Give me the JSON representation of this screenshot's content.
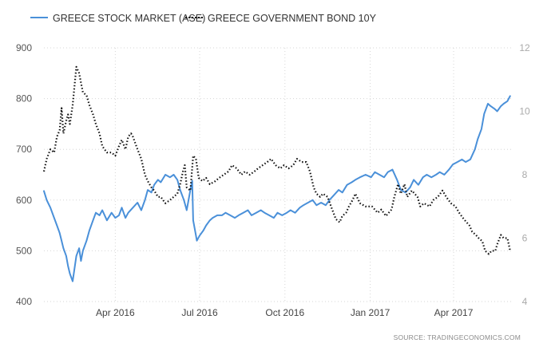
{
  "chart_data": {
    "type": "line",
    "title": "",
    "xlabel": "",
    "ylabel": "",
    "legend_position": "top-left",
    "grid": true,
    "x_axis": {
      "range": [
        "2016-01-15",
        "2017-06-02"
      ],
      "ticks": [
        {
          "date": "2016-04-01",
          "label": "Apr 2016"
        },
        {
          "date": "2016-07-01",
          "label": "Jul 2016"
        },
        {
          "date": "2016-10-01",
          "label": "Oct 2016"
        },
        {
          "date": "2017-01-01",
          "label": "Jan 2017"
        },
        {
          "date": "2017-04-01",
          "label": "Apr 2017"
        }
      ]
    },
    "y_left": {
      "range": [
        400,
        900
      ],
      "ticks": [
        {
          "v": 400,
          "label": "400"
        },
        {
          "v": 500,
          "label": "500"
        },
        {
          "v": 600,
          "label": "600"
        },
        {
          "v": 700,
          "label": "700"
        },
        {
          "v": 800,
          "label": "800"
        },
        {
          "v": 900,
          "label": "900"
        }
      ]
    },
    "y_right": {
      "range": [
        4,
        12
      ],
      "ticks": [
        {
          "v": 4,
          "label": "4"
        },
        {
          "v": 6,
          "label": "6"
        },
        {
          "v": 8,
          "label": "8"
        },
        {
          "v": 10,
          "label": "10"
        },
        {
          "v": 12,
          "label": "12"
        }
      ]
    },
    "series": [
      {
        "name": "GREECE STOCK MARKET (ASE)",
        "axis": "left",
        "color": "#4a90d9",
        "dash": "solid",
        "points": [
          [
            "2016-01-15",
            618
          ],
          [
            "2016-01-18",
            600
          ],
          [
            "2016-01-22",
            585
          ],
          [
            "2016-01-26",
            565
          ],
          [
            "2016-01-29",
            550
          ],
          [
            "2016-02-01",
            535
          ],
          [
            "2016-02-03",
            520
          ],
          [
            "2016-02-05",
            505
          ],
          [
            "2016-02-08",
            490
          ],
          [
            "2016-02-10",
            470
          ],
          [
            "2016-02-12",
            455
          ],
          [
            "2016-02-15",
            440
          ],
          [
            "2016-02-17",
            465
          ],
          [
            "2016-02-19",
            490
          ],
          [
            "2016-02-22",
            505
          ],
          [
            "2016-02-24",
            480
          ],
          [
            "2016-02-26",
            500
          ],
          [
            "2016-03-01",
            520
          ],
          [
            "2016-03-04",
            540
          ],
          [
            "2016-03-08",
            560
          ],
          [
            "2016-03-11",
            575
          ],
          [
            "2016-03-15",
            570
          ],
          [
            "2016-03-18",
            580
          ],
          [
            "2016-03-23",
            560
          ],
          [
            "2016-03-28",
            575
          ],
          [
            "2016-04-01",
            565
          ],
          [
            "2016-04-05",
            570
          ],
          [
            "2016-04-08",
            585
          ],
          [
            "2016-04-12",
            565
          ],
          [
            "2016-04-15",
            575
          ],
          [
            "2016-04-20",
            585
          ],
          [
            "2016-04-25",
            595
          ],
          [
            "2016-04-29",
            580
          ],
          [
            "2016-05-03",
            600
          ],
          [
            "2016-05-06",
            620
          ],
          [
            "2016-05-10",
            615
          ],
          [
            "2016-05-13",
            630
          ],
          [
            "2016-05-17",
            640
          ],
          [
            "2016-05-20",
            635
          ],
          [
            "2016-05-25",
            650
          ],
          [
            "2016-05-30",
            645
          ],
          [
            "2016-06-03",
            650
          ],
          [
            "2016-06-07",
            640
          ],
          [
            "2016-06-10",
            620
          ],
          [
            "2016-06-14",
            600
          ],
          [
            "2016-06-17",
            580
          ],
          [
            "2016-06-21",
            620
          ],
          [
            "2016-06-23",
            638
          ],
          [
            "2016-06-24",
            560
          ],
          [
            "2016-06-27",
            530
          ],
          [
            "2016-06-28",
            520
          ],
          [
            "2016-07-01",
            530
          ],
          [
            "2016-07-05",
            540
          ],
          [
            "2016-07-08",
            550
          ],
          [
            "2016-07-12",
            560
          ],
          [
            "2016-07-15",
            565
          ],
          [
            "2016-07-20",
            570
          ],
          [
            "2016-07-25",
            570
          ],
          [
            "2016-07-29",
            575
          ],
          [
            "2016-08-03",
            570
          ],
          [
            "2016-08-08",
            565
          ],
          [
            "2016-08-12",
            570
          ],
          [
            "2016-08-17",
            575
          ],
          [
            "2016-08-22",
            580
          ],
          [
            "2016-08-26",
            570
          ],
          [
            "2016-08-31",
            575
          ],
          [
            "2016-09-05",
            580
          ],
          [
            "2016-09-09",
            575
          ],
          [
            "2016-09-14",
            570
          ],
          [
            "2016-09-19",
            565
          ],
          [
            "2016-09-23",
            575
          ],
          [
            "2016-09-28",
            570
          ],
          [
            "2016-10-03",
            575
          ],
          [
            "2016-10-07",
            580
          ],
          [
            "2016-10-12",
            575
          ],
          [
            "2016-10-17",
            585
          ],
          [
            "2016-10-21",
            590
          ],
          [
            "2016-10-26",
            595
          ],
          [
            "2016-10-31",
            600
          ],
          [
            "2016-11-04",
            590
          ],
          [
            "2016-11-09",
            595
          ],
          [
            "2016-11-14",
            590
          ],
          [
            "2016-11-18",
            600
          ],
          [
            "2016-11-23",
            610
          ],
          [
            "2016-11-28",
            620
          ],
          [
            "2016-12-02",
            615
          ],
          [
            "2016-12-07",
            630
          ],
          [
            "2016-12-12",
            635
          ],
          [
            "2016-12-16",
            640
          ],
          [
            "2016-12-21",
            645
          ],
          [
            "2016-12-27",
            650
          ],
          [
            "2017-01-02",
            645
          ],
          [
            "2017-01-06",
            655
          ],
          [
            "2017-01-11",
            650
          ],
          [
            "2017-01-16",
            645
          ],
          [
            "2017-01-20",
            655
          ],
          [
            "2017-01-25",
            660
          ],
          [
            "2017-01-30",
            640
          ],
          [
            "2017-02-03",
            620
          ],
          [
            "2017-02-08",
            615
          ],
          [
            "2017-02-13",
            625
          ],
          [
            "2017-02-17",
            640
          ],
          [
            "2017-02-22",
            630
          ],
          [
            "2017-02-27",
            645
          ],
          [
            "2017-03-03",
            650
          ],
          [
            "2017-03-08",
            645
          ],
          [
            "2017-03-13",
            650
          ],
          [
            "2017-03-17",
            655
          ],
          [
            "2017-03-22",
            650
          ],
          [
            "2017-03-27",
            660
          ],
          [
            "2017-03-31",
            670
          ],
          [
            "2017-04-05",
            675
          ],
          [
            "2017-04-10",
            680
          ],
          [
            "2017-04-14",
            675
          ],
          [
            "2017-04-19",
            680
          ],
          [
            "2017-04-24",
            700
          ],
          [
            "2017-04-27",
            720
          ],
          [
            "2017-05-01",
            740
          ],
          [
            "2017-05-04",
            770
          ],
          [
            "2017-05-08",
            790
          ],
          [
            "2017-05-11",
            785
          ],
          [
            "2017-05-15",
            780
          ],
          [
            "2017-05-18",
            775
          ],
          [
            "2017-05-22",
            785
          ],
          [
            "2017-05-25",
            790
          ],
          [
            "2017-05-29",
            795
          ],
          [
            "2017-06-01",
            805
          ]
        ]
      },
      {
        "name": "GREECE GOVERNMENT BOND 10Y",
        "axis": "right",
        "color": "#111111",
        "dash": "dotted",
        "points": [
          [
            "2016-01-15",
            8.1
          ],
          [
            "2016-01-18",
            8.5
          ],
          [
            "2016-01-22",
            8.8
          ],
          [
            "2016-01-26",
            8.7
          ],
          [
            "2016-01-29",
            9.2
          ],
          [
            "2016-02-01",
            9.4
          ],
          [
            "2016-02-03",
            10.1
          ],
          [
            "2016-02-05",
            9.3
          ],
          [
            "2016-02-08",
            9.7
          ],
          [
            "2016-02-10",
            9.9
          ],
          [
            "2016-02-12",
            9.6
          ],
          [
            "2016-02-15",
            10.2
          ],
          [
            "2016-02-17",
            10.8
          ],
          [
            "2016-02-19",
            11.4
          ],
          [
            "2016-02-22",
            11.2
          ],
          [
            "2016-02-24",
            10.9
          ],
          [
            "2016-02-26",
            10.6
          ],
          [
            "2016-03-01",
            10.5
          ],
          [
            "2016-03-04",
            10.2
          ],
          [
            "2016-03-08",
            9.9
          ],
          [
            "2016-03-11",
            9.6
          ],
          [
            "2016-03-15",
            9.3
          ],
          [
            "2016-03-18",
            8.9
          ],
          [
            "2016-03-23",
            8.7
          ],
          [
            "2016-03-28",
            8.7
          ],
          [
            "2016-04-01",
            8.6
          ],
          [
            "2016-04-05",
            8.9
          ],
          [
            "2016-04-08",
            9.1
          ],
          [
            "2016-04-12",
            8.8
          ],
          [
            "2016-04-15",
            9.2
          ],
          [
            "2016-04-18",
            9.3
          ],
          [
            "2016-04-20",
            9.2
          ],
          [
            "2016-04-25",
            8.8
          ],
          [
            "2016-04-29",
            8.5
          ],
          [
            "2016-05-03",
            8.0
          ],
          [
            "2016-05-06",
            7.8
          ],
          [
            "2016-05-10",
            7.6
          ],
          [
            "2016-05-13",
            7.5
          ],
          [
            "2016-05-17",
            7.3
          ],
          [
            "2016-05-20",
            7.3
          ],
          [
            "2016-05-25",
            7.1
          ],
          [
            "2016-05-30",
            7.2
          ],
          [
            "2016-06-03",
            7.3
          ],
          [
            "2016-06-07",
            7.4
          ],
          [
            "2016-06-10",
            7.7
          ],
          [
            "2016-06-13",
            8.1
          ],
          [
            "2016-06-15",
            8.3
          ],
          [
            "2016-06-17",
            7.6
          ],
          [
            "2016-06-21",
            7.5
          ],
          [
            "2016-06-24",
            8.6
          ],
          [
            "2016-06-27",
            8.5
          ],
          [
            "2016-06-30",
            7.9
          ],
          [
            "2016-07-04",
            7.8
          ],
          [
            "2016-07-08",
            7.9
          ],
          [
            "2016-07-12",
            7.7
          ],
          [
            "2016-07-18",
            7.8
          ],
          [
            "2016-07-22",
            7.9
          ],
          [
            "2016-07-27",
            8.0
          ],
          [
            "2016-08-01",
            8.1
          ],
          [
            "2016-08-05",
            8.3
          ],
          [
            "2016-08-10",
            8.2
          ],
          [
            "2016-08-15",
            8.0
          ],
          [
            "2016-08-19",
            8.1
          ],
          [
            "2016-08-24",
            8.0
          ],
          [
            "2016-08-29",
            8.1
          ],
          [
            "2016-09-02",
            8.2
          ],
          [
            "2016-09-07",
            8.3
          ],
          [
            "2016-09-12",
            8.4
          ],
          [
            "2016-09-16",
            8.5
          ],
          [
            "2016-09-21",
            8.3
          ],
          [
            "2016-09-26",
            8.2
          ],
          [
            "2016-09-30",
            8.3
          ],
          [
            "2016-10-05",
            8.2
          ],
          [
            "2016-10-10",
            8.3
          ],
          [
            "2016-10-14",
            8.5
          ],
          [
            "2016-10-19",
            8.4
          ],
          [
            "2016-10-24",
            8.4
          ],
          [
            "2016-10-28",
            8.1
          ],
          [
            "2016-11-01",
            7.6
          ],
          [
            "2016-11-04",
            7.4
          ],
          [
            "2016-11-08",
            7.3
          ],
          [
            "2016-11-11",
            7.4
          ],
          [
            "2016-11-16",
            7.3
          ],
          [
            "2016-11-21",
            6.9
          ],
          [
            "2016-11-25",
            6.6
          ],
          [
            "2016-11-29",
            6.5
          ],
          [
            "2016-12-02",
            6.7
          ],
          [
            "2016-12-06",
            6.8
          ],
          [
            "2016-12-09",
            7.0
          ],
          [
            "2016-12-13",
            7.2
          ],
          [
            "2016-12-16",
            7.4
          ],
          [
            "2016-12-21",
            7.1
          ],
          [
            "2016-12-27",
            7.0
          ],
          [
            "2017-01-03",
            7.0
          ],
          [
            "2017-01-09",
            6.8
          ],
          [
            "2017-01-13",
            6.9
          ],
          [
            "2017-01-18",
            6.7
          ],
          [
            "2017-01-24",
            6.9
          ],
          [
            "2017-01-27",
            7.3
          ],
          [
            "2017-01-31",
            7.7
          ],
          [
            "2017-02-03",
            7.4
          ],
          [
            "2017-02-07",
            7.7
          ],
          [
            "2017-02-10",
            7.3
          ],
          [
            "2017-02-15",
            7.5
          ],
          [
            "2017-02-21",
            7.3
          ],
          [
            "2017-02-24",
            7.0
          ],
          [
            "2017-02-28",
            7.1
          ],
          [
            "2017-03-06",
            7.0
          ],
          [
            "2017-03-10",
            7.2
          ],
          [
            "2017-03-15",
            7.3
          ],
          [
            "2017-03-20",
            7.5
          ],
          [
            "2017-03-24",
            7.3
          ],
          [
            "2017-03-29",
            7.1
          ],
          [
            "2017-04-03",
            7.0
          ],
          [
            "2017-04-07",
            6.8
          ],
          [
            "2017-04-12",
            6.6
          ],
          [
            "2017-04-18",
            6.4
          ],
          [
            "2017-04-21",
            6.2
          ],
          [
            "2017-04-25",
            6.1
          ],
          [
            "2017-04-28",
            6.0
          ],
          [
            "2017-05-02",
            5.9
          ],
          [
            "2017-05-05",
            5.6
          ],
          [
            "2017-05-09",
            5.5
          ],
          [
            "2017-05-12",
            5.6
          ],
          [
            "2017-05-16",
            5.6
          ],
          [
            "2017-05-18",
            5.8
          ],
          [
            "2017-05-22",
            6.1
          ],
          [
            "2017-05-25",
            6.0
          ],
          [
            "2017-05-29",
            6.0
          ],
          [
            "2017-06-01",
            5.6
          ]
        ]
      }
    ],
    "source": "SOURCE: TRADINGECONOMICS.COM"
  }
}
